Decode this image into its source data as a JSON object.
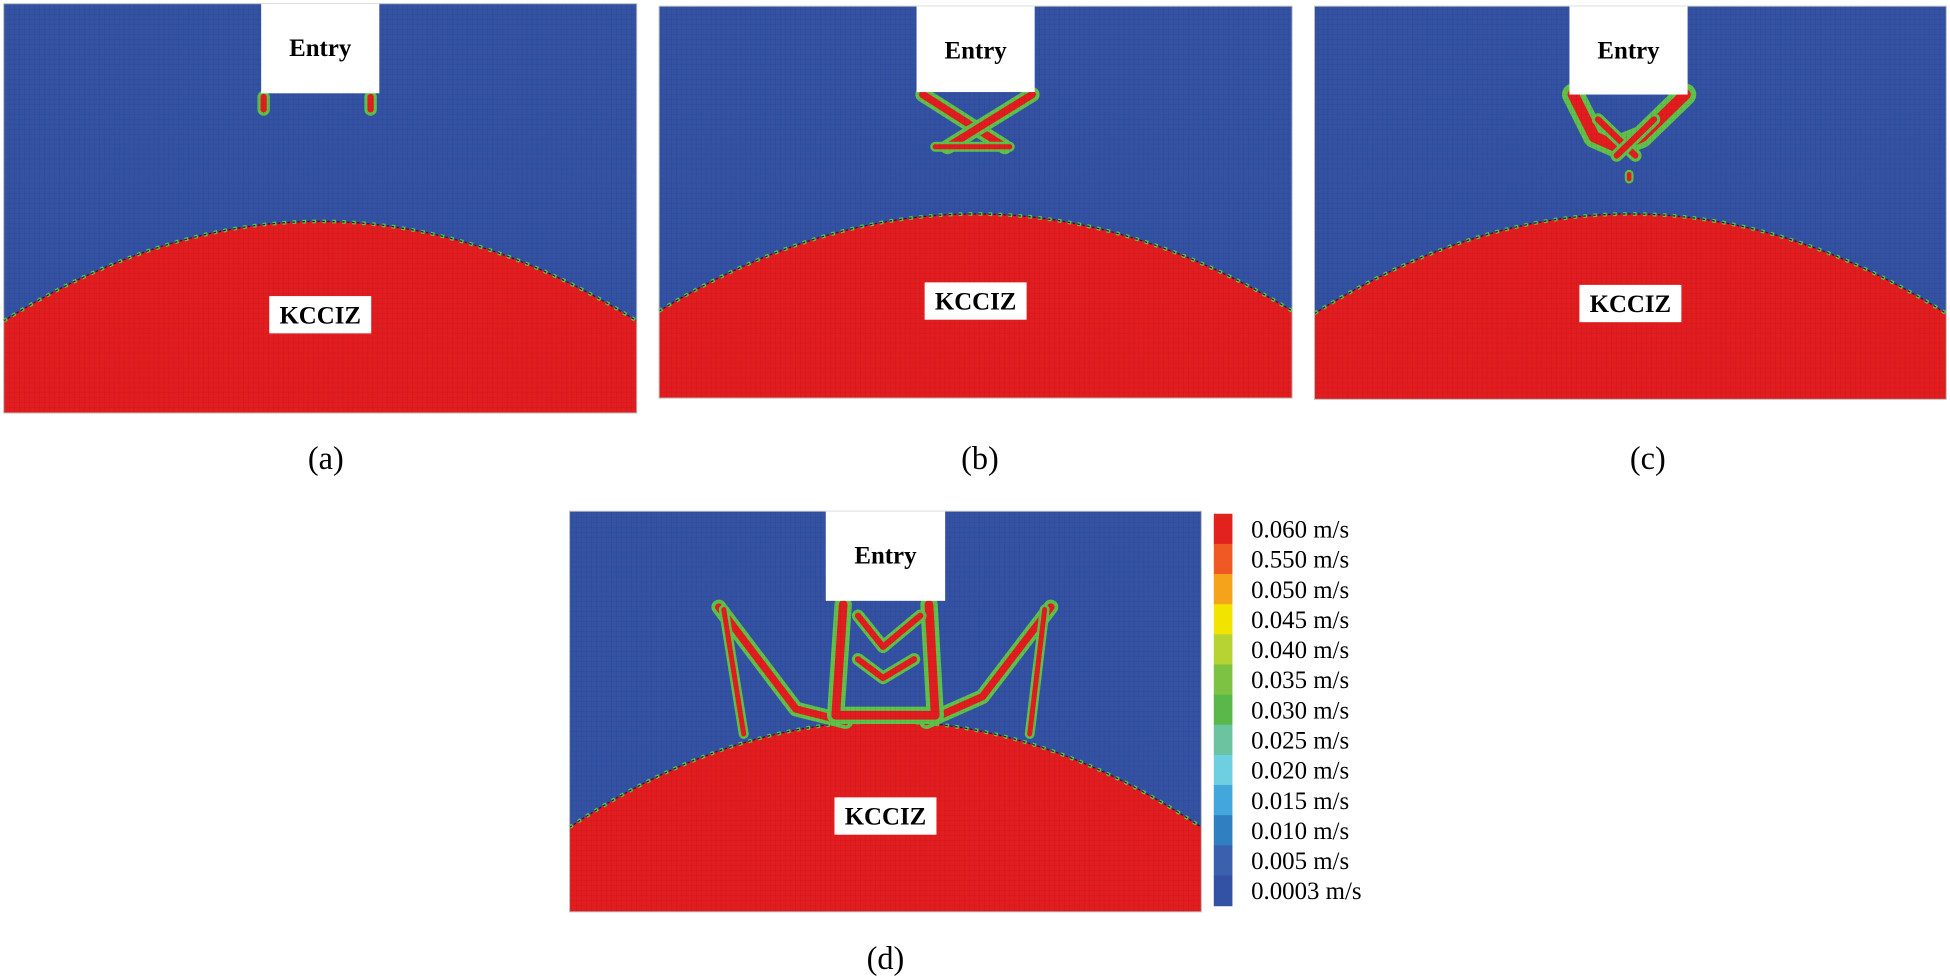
{
  "panels": [
    {
      "caption": "(a)",
      "entry": "Entry",
      "zone": "KCCIZ"
    },
    {
      "caption": "(b)",
      "entry": "Entry",
      "zone": "KCCIZ"
    },
    {
      "caption": "(c)",
      "entry": "Entry",
      "zone": "KCCIZ"
    },
    {
      "caption": "(d)",
      "entry": "Entry",
      "zone": "KCCIZ"
    }
  ],
  "legend": {
    "items": [
      {
        "label": "0.060 m/s",
        "color": "#e1221d"
      },
      {
        "label": "0.550 m/s",
        "color": "#ef5a24"
      },
      {
        "label": "0.050 m/s",
        "color": "#f6a31c"
      },
      {
        "label": "0.045 m/s",
        "color": "#f1e400"
      },
      {
        "label": "0.040 m/s",
        "color": "#b6d333"
      },
      {
        "label": "0.035 m/s",
        "color": "#7dc242"
      },
      {
        "label": "0.030 m/s",
        "color": "#5ab74a"
      },
      {
        "label": "0.025 m/s",
        "color": "#6cc3a0"
      },
      {
        "label": "0.020 m/s",
        "color": "#6dcfe0"
      },
      {
        "label": "0.015 m/s",
        "color": "#44a7dc"
      },
      {
        "label": "0.010 m/s",
        "color": "#2f7fc1"
      },
      {
        "label": "0.005 m/s",
        "color": "#3a60ae"
      },
      {
        "label": "0.0003 m/s",
        "color": "#3452a4"
      }
    ]
  }
}
